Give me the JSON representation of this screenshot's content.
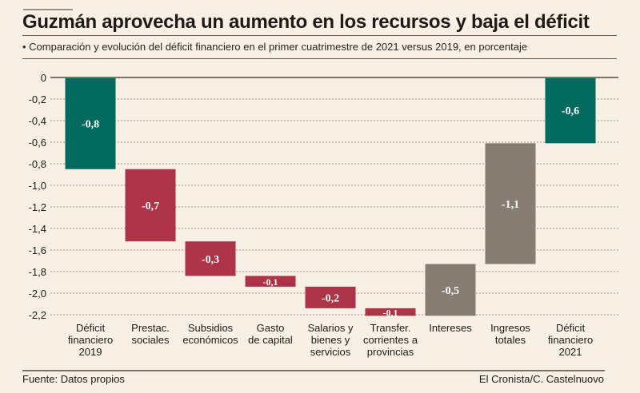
{
  "header": {
    "title": "Guzmán aprovecha un aumento en los recursos y baja el déficit",
    "subtitle": "• Comparación y evolución del déficit financiero en el primer cuatrimestre de 2021 versus 2019, en porcentaje"
  },
  "footer": {
    "source": "Fuente: Datos propios",
    "credit": "El Cronista/C. Castelnuovo"
  },
  "colors": {
    "total": "#006a5f",
    "decrease": "#ad3346",
    "increase": "#877c71",
    "axis": "#7d7268",
    "grid": "#9a8f85",
    "background": "#f8f0e5"
  },
  "chart_data": {
    "type": "bar",
    "subtype": "waterfall",
    "title": "Guzmán aprovecha un aumento en los recursos y baja el déficit",
    "subtitle": "Comparación y evolución del déficit financiero en el primer cuatrimestre de 2021 versus 2019, en porcentaje",
    "xlabel": "",
    "ylabel": "",
    "ylim": [
      -2.2,
      0
    ],
    "yticks": [
      0,
      -0.2,
      -0.4,
      -0.6,
      -0.8,
      -1.0,
      -1.2,
      -1.4,
      -1.6,
      -1.8,
      -2.0,
      -2.2
    ],
    "ytick_labels": [
      "0",
      "-0,2",
      "-0,4",
      "-0,6",
      "-0,8",
      "-1,0",
      "-1,2",
      "-1,4",
      "-1,6",
      "-1,8",
      "-2,0",
      "-2,2"
    ],
    "grid": true,
    "categories": [
      [
        "Déficit",
        "financiero",
        "2019"
      ],
      [
        "Prestac.",
        "sociales"
      ],
      [
        "Subsidios",
        "económicos"
      ],
      [
        "Gasto",
        "de capital"
      ],
      [
        "Salarios y",
        "bienes y",
        "servicios"
      ],
      [
        "Transfer.",
        "corrientes a",
        "provincias"
      ],
      [
        "Intereses"
      ],
      [
        "Ingresos",
        "totales"
      ],
      [
        "Déficit",
        "financiero",
        "2021"
      ]
    ],
    "bars": [
      {
        "label": "-0,8",
        "start": 0,
        "end": -0.85,
        "kind": "total"
      },
      {
        "label": "-0,7",
        "start": -0.85,
        "end": -1.52,
        "kind": "decrease"
      },
      {
        "label": "-0,3",
        "start": -1.52,
        "end": -1.84,
        "kind": "decrease"
      },
      {
        "label": "-0,1",
        "start": -1.84,
        "end": -1.94,
        "kind": "decrease"
      },
      {
        "label": "-0,2",
        "start": -1.94,
        "end": -2.14,
        "kind": "decrease"
      },
      {
        "label": "-0,1",
        "start": -2.14,
        "end": -2.21,
        "kind": "decrease"
      },
      {
        "label": "-0,5",
        "start": -2.21,
        "end": -1.73,
        "kind": "increase"
      },
      {
        "label": "-1,1",
        "start": -1.73,
        "end": -0.61,
        "kind": "increase"
      },
      {
        "label": "-0,6",
        "start": 0,
        "end": -0.61,
        "kind": "total"
      }
    ]
  }
}
